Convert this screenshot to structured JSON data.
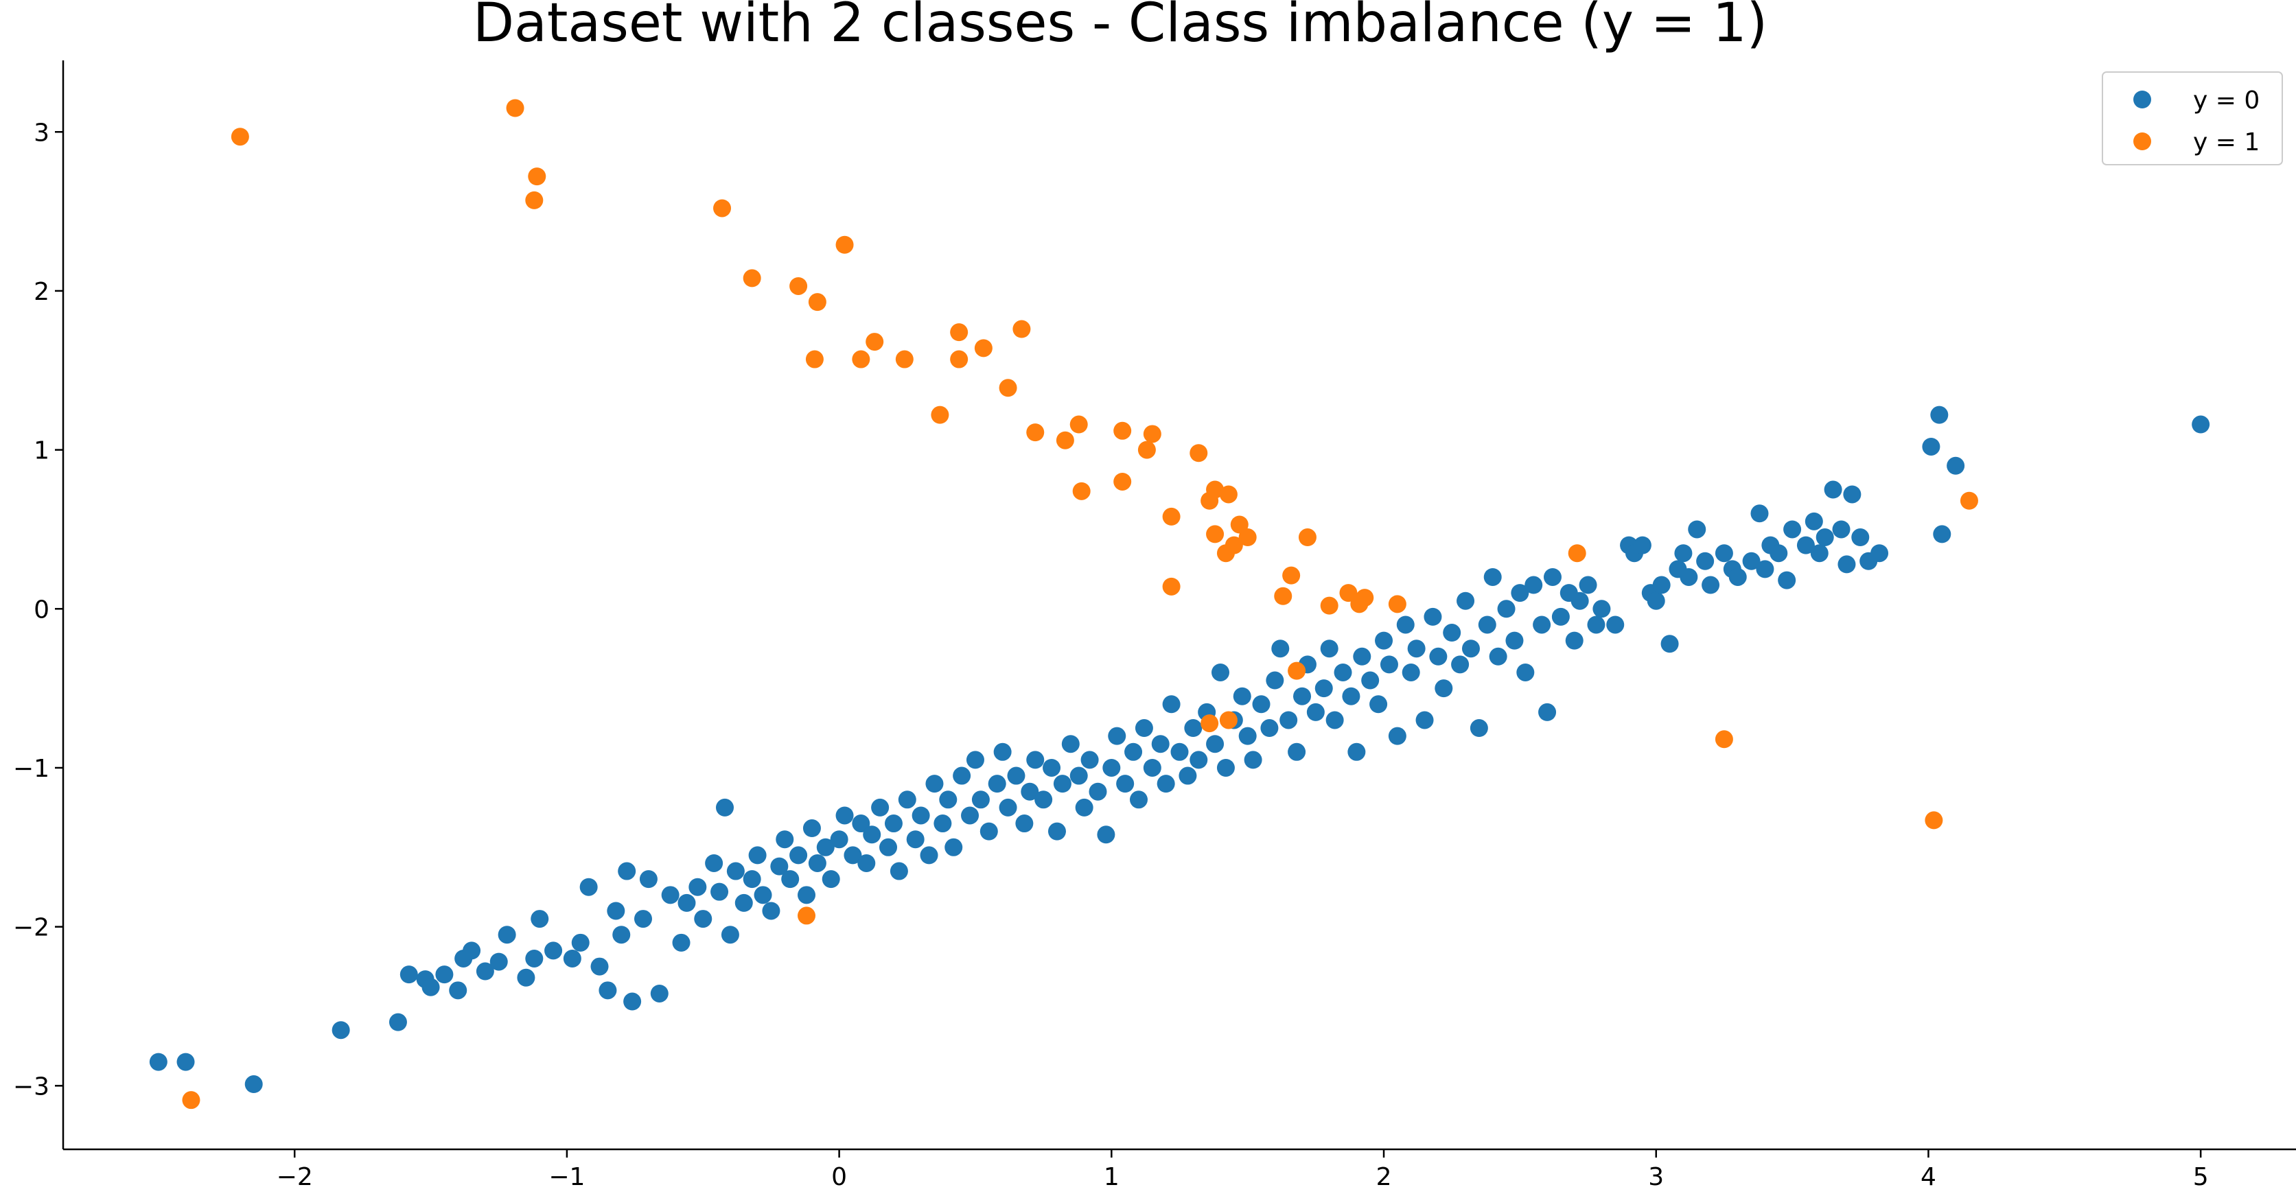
{
  "colors": {
    "class_0": "#1f77b4",
    "class_1": "#ff7f0e",
    "legend_border": "#cccccc"
  },
  "chart_data": {
    "type": "scatter",
    "title": "Dataset with 2 classes - Class imbalance (y = 1)",
    "xlabel": "",
    "ylabel": "",
    "xlim": [
      -2.85,
      5.35
    ],
    "ylim": [
      -3.4,
      3.45
    ],
    "x_ticks": [
      -2,
      -1,
      0,
      1,
      2,
      3,
      4,
      5
    ],
    "x_tick_labels": [
      "−2",
      "−1",
      "0",
      "1",
      "2",
      "3",
      "4",
      "5"
    ],
    "y_ticks": [
      -3,
      -2,
      -1,
      0,
      1,
      2,
      3
    ],
    "y_tick_labels": [
      "−3",
      "−2",
      "−1",
      "0",
      "1",
      "2",
      "3"
    ],
    "grid": false,
    "legend_position": "top-right",
    "series": [
      {
        "name": "y = 0",
        "color": "#1f77b4",
        "points": [
          [
            -2.5,
            -2.85
          ],
          [
            -2.4,
            -2.85
          ],
          [
            -2.15,
            -2.99
          ],
          [
            -1.83,
            -2.65
          ],
          [
            -1.62,
            -2.6
          ],
          [
            -1.58,
            -2.3
          ],
          [
            -1.52,
            -2.33
          ],
          [
            -1.5,
            -2.38
          ],
          [
            -1.45,
            -2.3
          ],
          [
            -1.4,
            -2.4
          ],
          [
            -1.38,
            -2.2
          ],
          [
            -1.35,
            -2.15
          ],
          [
            -1.3,
            -2.28
          ],
          [
            -1.25,
            -2.22
          ],
          [
            -1.22,
            -2.05
          ],
          [
            -1.15,
            -2.32
          ],
          [
            -1.12,
            -2.2
          ],
          [
            -1.1,
            -1.95
          ],
          [
            -1.05,
            -2.15
          ],
          [
            -0.98,
            -2.2
          ],
          [
            -0.95,
            -2.1
          ],
          [
            -0.92,
            -1.75
          ],
          [
            -0.88,
            -2.25
          ],
          [
            -0.85,
            -2.4
          ],
          [
            -0.82,
            -1.9
          ],
          [
            -0.8,
            -2.05
          ],
          [
            -0.78,
            -1.65
          ],
          [
            -0.76,
            -2.47
          ],
          [
            -0.72,
            -1.95
          ],
          [
            -0.7,
            -1.7
          ],
          [
            -0.66,
            -2.42
          ],
          [
            -0.62,
            -1.8
          ],
          [
            -0.58,
            -2.1
          ],
          [
            -0.56,
            -1.85
          ],
          [
            -0.52,
            -1.75
          ],
          [
            -0.5,
            -1.95
          ],
          [
            -0.46,
            -1.6
          ],
          [
            -0.44,
            -1.78
          ],
          [
            -0.42,
            -1.25
          ],
          [
            -0.4,
            -2.05
          ],
          [
            -0.38,
            -1.65
          ],
          [
            -0.35,
            -1.85
          ],
          [
            -0.32,
            -1.7
          ],
          [
            -0.3,
            -1.55
          ],
          [
            -0.28,
            -1.8
          ],
          [
            -0.25,
            -1.9
          ],
          [
            -0.22,
            -1.62
          ],
          [
            -0.2,
            -1.45
          ],
          [
            -0.18,
            -1.7
          ],
          [
            -0.15,
            -1.55
          ],
          [
            -0.12,
            -1.8
          ],
          [
            -0.1,
            -1.38
          ],
          [
            -0.08,
            -1.6
          ],
          [
            -0.05,
            -1.5
          ],
          [
            -0.03,
            -1.7
          ],
          [
            0.0,
            -1.45
          ],
          [
            0.02,
            -1.3
          ],
          [
            0.05,
            -1.55
          ],
          [
            0.08,
            -1.35
          ],
          [
            0.1,
            -1.6
          ],
          [
            0.12,
            -1.42
          ],
          [
            0.15,
            -1.25
          ],
          [
            0.18,
            -1.5
          ],
          [
            0.2,
            -1.35
          ],
          [
            0.22,
            -1.65
          ],
          [
            0.25,
            -1.2
          ],
          [
            0.28,
            -1.45
          ],
          [
            0.3,
            -1.3
          ],
          [
            0.33,
            -1.55
          ],
          [
            0.35,
            -1.1
          ],
          [
            0.38,
            -1.35
          ],
          [
            0.4,
            -1.2
          ],
          [
            0.42,
            -1.5
          ],
          [
            0.45,
            -1.05
          ],
          [
            0.48,
            -1.3
          ],
          [
            0.5,
            -0.95
          ],
          [
            0.52,
            -1.2
          ],
          [
            0.55,
            -1.4
          ],
          [
            0.58,
            -1.1
          ],
          [
            0.6,
            -0.9
          ],
          [
            0.62,
            -1.25
          ],
          [
            0.65,
            -1.05
          ],
          [
            0.68,
            -1.35
          ],
          [
            0.7,
            -1.15
          ],
          [
            0.72,
            -0.95
          ],
          [
            0.75,
            -1.2
          ],
          [
            0.78,
            -1.0
          ],
          [
            0.8,
            -1.4
          ],
          [
            0.82,
            -1.1
          ],
          [
            0.85,
            -0.85
          ],
          [
            0.88,
            -1.05
          ],
          [
            0.9,
            -1.25
          ],
          [
            0.92,
            -0.95
          ],
          [
            0.95,
            -1.15
          ],
          [
            0.98,
            -1.42
          ],
          [
            1.0,
            -1.0
          ],
          [
            1.02,
            -0.8
          ],
          [
            1.05,
            -1.1
          ],
          [
            1.08,
            -0.9
          ],
          [
            1.1,
            -1.2
          ],
          [
            1.12,
            -0.75
          ],
          [
            1.15,
            -1.0
          ],
          [
            1.18,
            -0.85
          ],
          [
            1.2,
            -1.1
          ],
          [
            1.22,
            -0.6
          ],
          [
            1.25,
            -0.9
          ],
          [
            1.28,
            -1.05
          ],
          [
            1.3,
            -0.75
          ],
          [
            1.32,
            -0.95
          ],
          [
            1.35,
            -0.65
          ],
          [
            1.38,
            -0.85
          ],
          [
            1.4,
            -0.4
          ],
          [
            1.42,
            -1.0
          ],
          [
            1.45,
            -0.7
          ],
          [
            1.48,
            -0.55
          ],
          [
            1.5,
            -0.8
          ],
          [
            1.52,
            -0.95
          ],
          [
            1.55,
            -0.6
          ],
          [
            1.58,
            -0.75
          ],
          [
            1.6,
            -0.45
          ],
          [
            1.62,
            -0.25
          ],
          [
            1.65,
            -0.7
          ],
          [
            1.68,
            -0.9
          ],
          [
            1.7,
            -0.55
          ],
          [
            1.72,
            -0.35
          ],
          [
            1.75,
            -0.65
          ],
          [
            1.78,
            -0.5
          ],
          [
            1.8,
            -0.25
          ],
          [
            1.82,
            -0.7
          ],
          [
            1.85,
            -0.4
          ],
          [
            1.88,
            -0.55
          ],
          [
            1.9,
            -0.9
          ],
          [
            1.92,
            -0.3
          ],
          [
            1.95,
            -0.45
          ],
          [
            1.98,
            -0.6
          ],
          [
            2.0,
            -0.2
          ],
          [
            2.02,
            -0.35
          ],
          [
            2.05,
            -0.8
          ],
          [
            2.08,
            -0.1
          ],
          [
            2.1,
            -0.4
          ],
          [
            2.12,
            -0.25
          ],
          [
            2.15,
            -0.7
          ],
          [
            2.18,
            -0.05
          ],
          [
            2.2,
            -0.3
          ],
          [
            2.22,
            -0.5
          ],
          [
            2.25,
            -0.15
          ],
          [
            2.28,
            -0.35
          ],
          [
            2.3,
            0.05
          ],
          [
            2.32,
            -0.25
          ],
          [
            2.35,
            -0.75
          ],
          [
            2.38,
            -0.1
          ],
          [
            2.4,
            0.2
          ],
          [
            2.42,
            -0.3
          ],
          [
            2.45,
            0.0
          ],
          [
            2.48,
            -0.2
          ],
          [
            2.5,
            0.1
          ],
          [
            2.52,
            -0.4
          ],
          [
            2.55,
            0.15
          ],
          [
            2.58,
            -0.1
          ],
          [
            2.6,
            -0.65
          ],
          [
            2.62,
            0.2
          ],
          [
            2.65,
            -0.05
          ],
          [
            2.68,
            0.1
          ],
          [
            2.7,
            -0.2
          ],
          [
            2.72,
            0.05
          ],
          [
            2.75,
            0.15
          ],
          [
            2.78,
            -0.1
          ],
          [
            2.8,
            0.0
          ],
          [
            2.85,
            -0.1
          ],
          [
            2.9,
            0.4
          ],
          [
            2.92,
            0.35
          ],
          [
            2.95,
            0.4
          ],
          [
            2.98,
            0.1
          ],
          [
            3.0,
            0.05
          ],
          [
            3.02,
            0.15
          ],
          [
            3.05,
            -0.22
          ],
          [
            3.08,
            0.25
          ],
          [
            3.1,
            0.35
          ],
          [
            3.12,
            0.2
          ],
          [
            3.15,
            0.5
          ],
          [
            3.18,
            0.3
          ],
          [
            3.2,
            0.15
          ],
          [
            3.25,
            0.35
          ],
          [
            3.28,
            0.25
          ],
          [
            3.3,
            0.2
          ],
          [
            3.35,
            0.3
          ],
          [
            3.38,
            0.6
          ],
          [
            3.4,
            0.25
          ],
          [
            3.42,
            0.4
          ],
          [
            3.45,
            0.35
          ],
          [
            3.48,
            0.18
          ],
          [
            3.5,
            0.5
          ],
          [
            3.55,
            0.4
          ],
          [
            3.58,
            0.55
          ],
          [
            3.6,
            0.35
          ],
          [
            3.62,
            0.45
          ],
          [
            3.65,
            0.75
          ],
          [
            3.68,
            0.5
          ],
          [
            3.7,
            0.28
          ],
          [
            3.72,
            0.72
          ],
          [
            3.75,
            0.45
          ],
          [
            3.78,
            0.3
          ],
          [
            3.82,
            0.35
          ],
          [
            4.01,
            1.02
          ],
          [
            4.04,
            1.22
          ],
          [
            4.05,
            0.47
          ],
          [
            4.1,
            0.9
          ],
          [
            5.0,
            1.16
          ]
        ]
      },
      {
        "name": "y = 1",
        "color": "#ff7f0e",
        "points": [
          [
            -2.2,
            2.97
          ],
          [
            -1.19,
            3.15
          ],
          [
            -1.11,
            2.72
          ],
          [
            -1.12,
            2.57
          ],
          [
            -0.43,
            2.52
          ],
          [
            -0.32,
            2.08
          ],
          [
            -0.15,
            2.03
          ],
          [
            0.02,
            2.29
          ],
          [
            -0.08,
            1.93
          ],
          [
            -0.09,
            1.57
          ],
          [
            0.08,
            1.57
          ],
          [
            0.13,
            1.68
          ],
          [
            0.24,
            1.57
          ],
          [
            0.44,
            1.74
          ],
          [
            0.44,
            1.57
          ],
          [
            0.53,
            1.64
          ],
          [
            0.67,
            1.76
          ],
          [
            0.62,
            1.39
          ],
          [
            0.37,
            1.22
          ],
          [
            0.72,
            1.11
          ],
          [
            0.83,
            1.06
          ],
          [
            0.88,
            1.16
          ],
          [
            0.89,
            0.74
          ],
          [
            1.04,
            1.12
          ],
          [
            1.04,
            0.8
          ],
          [
            1.13,
            1.0
          ],
          [
            1.15,
            1.1
          ],
          [
            1.32,
            0.98
          ],
          [
            1.22,
            0.58
          ],
          [
            1.36,
            0.68
          ],
          [
            1.38,
            0.75
          ],
          [
            1.43,
            0.72
          ],
          [
            1.38,
            0.47
          ],
          [
            1.47,
            0.53
          ],
          [
            1.42,
            0.35
          ],
          [
            1.45,
            0.4
          ],
          [
            1.5,
            0.45
          ],
          [
            1.63,
            0.08
          ],
          [
            1.66,
            0.21
          ],
          [
            1.72,
            0.45
          ],
          [
            1.22,
            0.14
          ],
          [
            1.8,
            0.02
          ],
          [
            1.87,
            0.1
          ],
          [
            1.91,
            0.03
          ],
          [
            1.93,
            0.07
          ],
          [
            2.05,
            0.03
          ],
          [
            2.71,
            0.35
          ],
          [
            4.15,
            0.68
          ],
          [
            1.68,
            -0.39
          ],
          [
            1.36,
            -0.72
          ],
          [
            1.43,
            -0.7
          ],
          [
            3.25,
            -0.82
          ],
          [
            4.02,
            -1.33
          ],
          [
            -0.12,
            -1.93
          ],
          [
            -2.38,
            -3.09
          ]
        ]
      }
    ]
  }
}
